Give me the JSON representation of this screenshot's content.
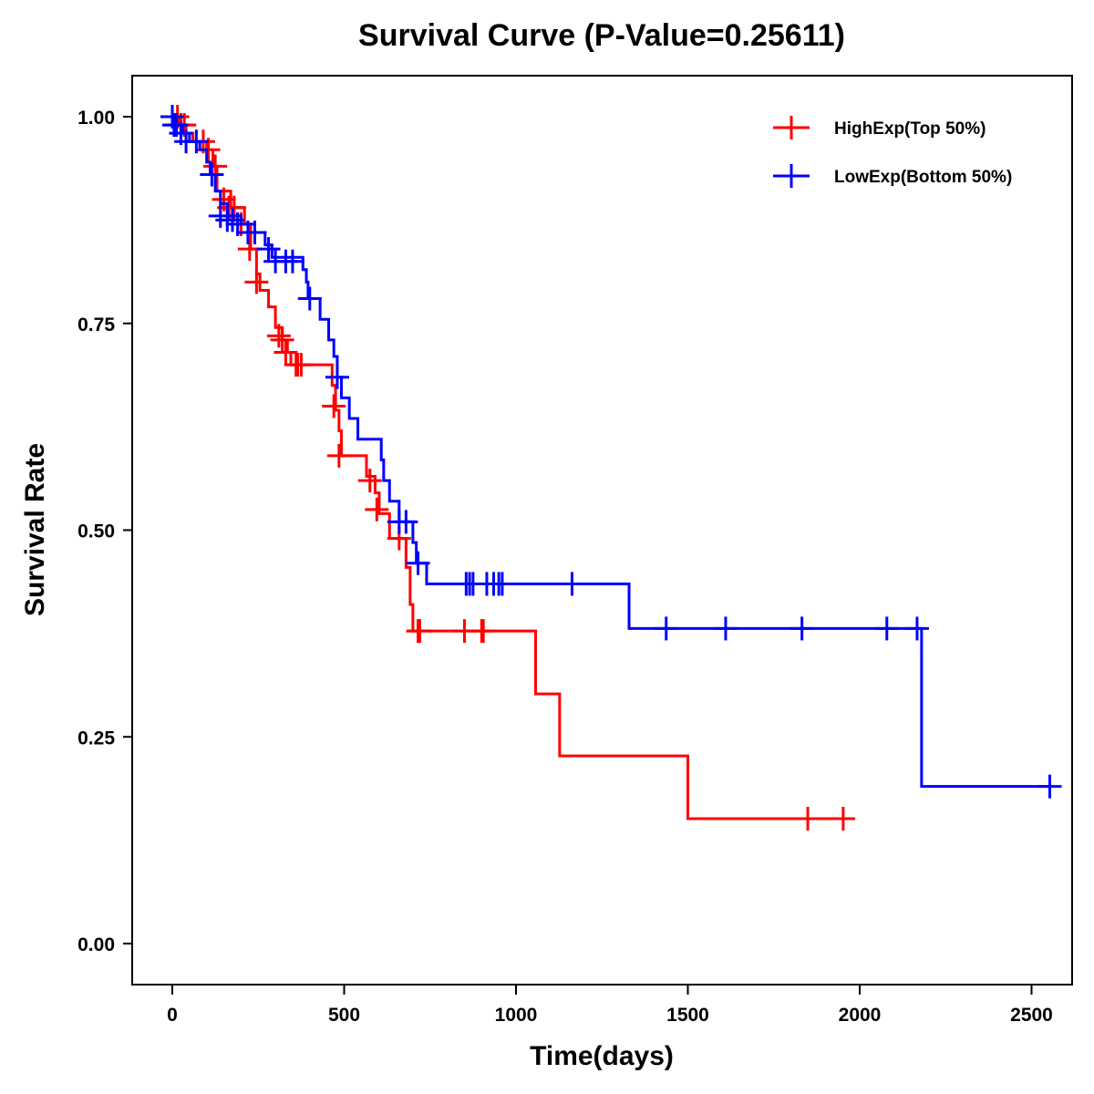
{
  "chart_data": {
    "type": "line",
    "subtype": "kaplan-meier-step",
    "title": "Survival Curve (P-Value=0.25611)",
    "xlabel": "Time(days)",
    "ylabel": "Survival Rate",
    "xlim": [
      -120,
      2620
    ],
    "ylim": [
      -0.05,
      1.05
    ],
    "xticks": [
      0,
      500,
      1000,
      1500,
      2000,
      2500
    ],
    "xtick_labels": [
      "0",
      "500",
      "1000",
      "1500",
      "2000",
      "2500"
    ],
    "yticks": [
      0,
      0.25,
      0.5,
      0.75,
      1.0
    ],
    "ytick_labels": [
      "0.00",
      "0.25",
      "0.50",
      "0.75",
      "1.00"
    ],
    "grid": false,
    "legend_position": "top-right",
    "series": [
      {
        "name": "HighExp(Top 50%)",
        "color": "#ff0000",
        "steps": [
          [
            0,
            1.0
          ],
          [
            20,
            0.99
          ],
          [
            40,
            0.98
          ],
          [
            60,
            0.97
          ],
          [
            100,
            0.96
          ],
          [
            118,
            0.94
          ],
          [
            130,
            0.91
          ],
          [
            170,
            0.89
          ],
          [
            210,
            0.87
          ],
          [
            228,
            0.84
          ],
          [
            245,
            0.81
          ],
          [
            255,
            0.79
          ],
          [
            280,
            0.77
          ],
          [
            300,
            0.745
          ],
          [
            320,
            0.73
          ],
          [
            335,
            0.715
          ],
          [
            345,
            0.7
          ],
          [
            465,
            0.675
          ],
          [
            475,
            0.645
          ],
          [
            485,
            0.62
          ],
          [
            492,
            0.59
          ],
          [
            565,
            0.565
          ],
          [
            590,
            0.545
          ],
          [
            602,
            0.52
          ],
          [
            632,
            0.49
          ],
          [
            680,
            0.455
          ],
          [
            692,
            0.41
          ],
          [
            700,
            0.378
          ],
          [
            1057,
            0.302
          ],
          [
            1127,
            0.227
          ],
          [
            1500,
            0.151
          ]
        ],
        "end_time": 1960,
        "censored": [
          [
            15,
            1.0
          ],
          [
            25,
            0.99
          ],
          [
            35,
            0.99
          ],
          [
            90,
            0.97
          ],
          [
            105,
            0.96
          ],
          [
            125,
            0.94
          ],
          [
            150,
            0.9
          ],
          [
            165,
            0.89
          ],
          [
            180,
            0.89
          ],
          [
            200,
            0.87
          ],
          [
            225,
            0.84
          ],
          [
            245,
            0.8
          ],
          [
            310,
            0.735
          ],
          [
            320,
            0.73
          ],
          [
            330,
            0.715
          ],
          [
            360,
            0.7
          ],
          [
            365,
            0.7
          ],
          [
            375,
            0.7
          ],
          [
            470,
            0.65
          ],
          [
            485,
            0.59
          ],
          [
            575,
            0.56
          ],
          [
            595,
            0.525
          ],
          [
            660,
            0.49
          ],
          [
            715,
            0.378
          ],
          [
            720,
            0.378
          ],
          [
            850,
            0.378
          ],
          [
            900,
            0.378
          ],
          [
            905,
            0.378
          ],
          [
            1849,
            0.151
          ],
          [
            1952,
            0.151
          ]
        ]
      },
      {
        "name": "LowExp(Bottom 50%)",
        "color": "#0000ff",
        "steps": [
          [
            0,
            1.0
          ],
          [
            10,
            0.99
          ],
          [
            30,
            0.98
          ],
          [
            50,
            0.97
          ],
          [
            80,
            0.96
          ],
          [
            100,
            0.945
          ],
          [
            110,
            0.93
          ],
          [
            125,
            0.91
          ],
          [
            140,
            0.895
          ],
          [
            160,
            0.88
          ],
          [
            200,
            0.87
          ],
          [
            240,
            0.86
          ],
          [
            270,
            0.845
          ],
          [
            290,
            0.83
          ],
          [
            380,
            0.815
          ],
          [
            390,
            0.8
          ],
          [
            395,
            0.78
          ],
          [
            430,
            0.755
          ],
          [
            455,
            0.73
          ],
          [
            470,
            0.71
          ],
          [
            480,
            0.685
          ],
          [
            492,
            0.66
          ],
          [
            515,
            0.635
          ],
          [
            540,
            0.61
          ],
          [
            608,
            0.585
          ],
          [
            615,
            0.56
          ],
          [
            632,
            0.535
          ],
          [
            660,
            0.51
          ],
          [
            700,
            0.485
          ],
          [
            710,
            0.46
          ],
          [
            740,
            0.435
          ],
          [
            1329,
            0.381
          ],
          [
            2180,
            0.19
          ]
        ],
        "end_time": 2560,
        "censored": [
          [
            0,
            1.0
          ],
          [
            5,
            0.99
          ],
          [
            12,
            0.99
          ],
          [
            25,
            0.98
          ],
          [
            40,
            0.97
          ],
          [
            70,
            0.97
          ],
          [
            115,
            0.93
          ],
          [
            140,
            0.88
          ],
          [
            160,
            0.875
          ],
          [
            175,
            0.875
          ],
          [
            190,
            0.87
          ],
          [
            220,
            0.86
          ],
          [
            240,
            0.86
          ],
          [
            280,
            0.84
          ],
          [
            300,
            0.825
          ],
          [
            330,
            0.825
          ],
          [
            350,
            0.825
          ],
          [
            400,
            0.78
          ],
          [
            480,
            0.685
          ],
          [
            660,
            0.51
          ],
          [
            680,
            0.51
          ],
          [
            715,
            0.46
          ],
          [
            855,
            0.435
          ],
          [
            865,
            0.435
          ],
          [
            875,
            0.435
          ],
          [
            915,
            0.435
          ],
          [
            935,
            0.435
          ],
          [
            950,
            0.435
          ],
          [
            960,
            0.435
          ],
          [
            1163,
            0.435
          ],
          [
            1437,
            0.381
          ],
          [
            1610,
            0.381
          ],
          [
            1832,
            0.381
          ],
          [
            2079,
            0.381
          ],
          [
            2167,
            0.381
          ],
          [
            2553,
            0.19
          ]
        ]
      }
    ]
  }
}
